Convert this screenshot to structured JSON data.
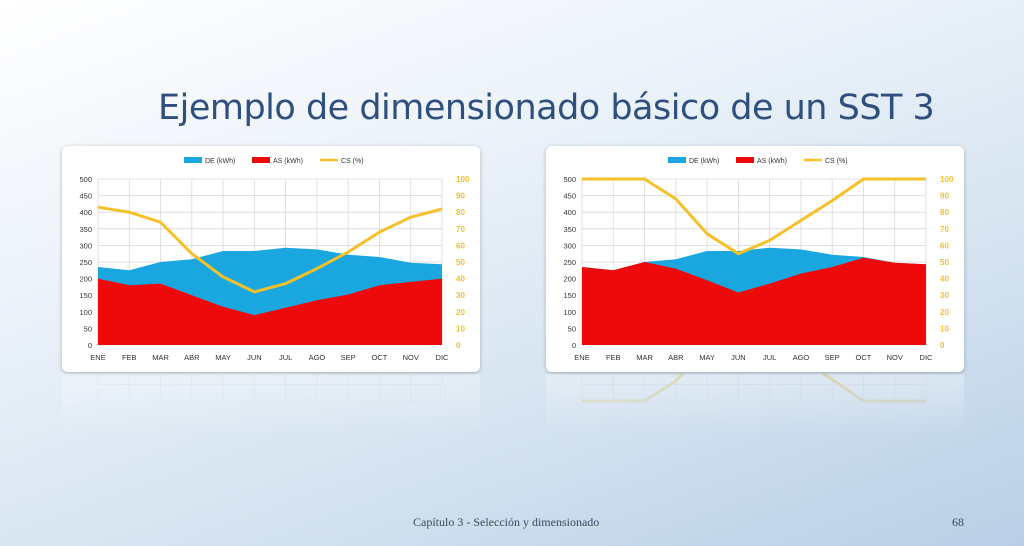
{
  "slide": {
    "title": "Ejemplo de dimensionado básico de un SST 3",
    "footer_text": "Capítulo 3 - Selección y dimensionado",
    "page_number": "68"
  },
  "colors": {
    "de": "#1aa7e0",
    "as": "#ee0a0a",
    "cs": "#f5c02a",
    "grid": "#d8d8d8"
  },
  "chart_data": [
    {
      "type": "area",
      "categories": [
        "ENE",
        "FEB",
        "MAR",
        "ABR",
        "MAY",
        "JUN",
        "JUL",
        "AGO",
        "SEP",
        "OCT",
        "NOV",
        "DIC"
      ],
      "series": [
        {
          "name": "DE (kWh)",
          "kind": "area",
          "axis": "left",
          "values": [
            235,
            225,
            250,
            258,
            283,
            283,
            293,
            288,
            272,
            265,
            248,
            243
          ]
        },
        {
          "name": "AS (kWh)",
          "kind": "area",
          "axis": "left",
          "values": [
            200,
            180,
            185,
            150,
            115,
            90,
            112,
            135,
            152,
            180,
            190,
            200
          ]
        },
        {
          "name": "CS (%)",
          "kind": "line",
          "axis": "right",
          "values": [
            83,
            80,
            74,
            55,
            41,
            32,
            37,
            46,
            56,
            68,
            77,
            82
          ]
        }
      ],
      "y_left": {
        "min": 0,
        "max": 500,
        "ticks": [
          "0",
          "50",
          "100",
          "150",
          "200",
          "250",
          "300",
          "350",
          "400",
          "450",
          "500"
        ]
      },
      "y_right": {
        "min": 0,
        "max": 100,
        "ticks": [
          "0",
          "10",
          "20",
          "30",
          "40",
          "50",
          "60",
          "70",
          "80",
          "90",
          "100"
        ]
      },
      "legend_position": "top",
      "grid": true
    },
    {
      "type": "area",
      "categories": [
        "ENE",
        "FEB",
        "MAR",
        "ABR",
        "MAY",
        "JUN",
        "JUL",
        "AGO",
        "SEP",
        "OCT",
        "NOV",
        "DIC"
      ],
      "series": [
        {
          "name": "DE (kWh)",
          "kind": "area",
          "axis": "left",
          "values": [
            235,
            225,
            250,
            258,
            283,
            283,
            293,
            288,
            272,
            265,
            248,
            243
          ]
        },
        {
          "name": "AS (kWh)",
          "kind": "area",
          "axis": "left",
          "values": [
            235,
            225,
            250,
            230,
            195,
            158,
            185,
            215,
            235,
            263,
            248,
            243
          ]
        },
        {
          "name": "CS (%)",
          "kind": "line",
          "axis": "right",
          "values": [
            100,
            100,
            100,
            88,
            67,
            55,
            63,
            75,
            87,
            100,
            100,
            100
          ]
        }
      ],
      "y_left": {
        "min": 0,
        "max": 500,
        "ticks": [
          "0",
          "50",
          "100",
          "150",
          "200",
          "250",
          "300",
          "350",
          "400",
          "450",
          "500"
        ]
      },
      "y_right": {
        "min": 0,
        "max": 100,
        "ticks": [
          "0",
          "10",
          "20",
          "30",
          "40",
          "50",
          "60",
          "70",
          "80",
          "90",
          "100"
        ]
      },
      "legend_position": "top",
      "grid": true
    }
  ]
}
